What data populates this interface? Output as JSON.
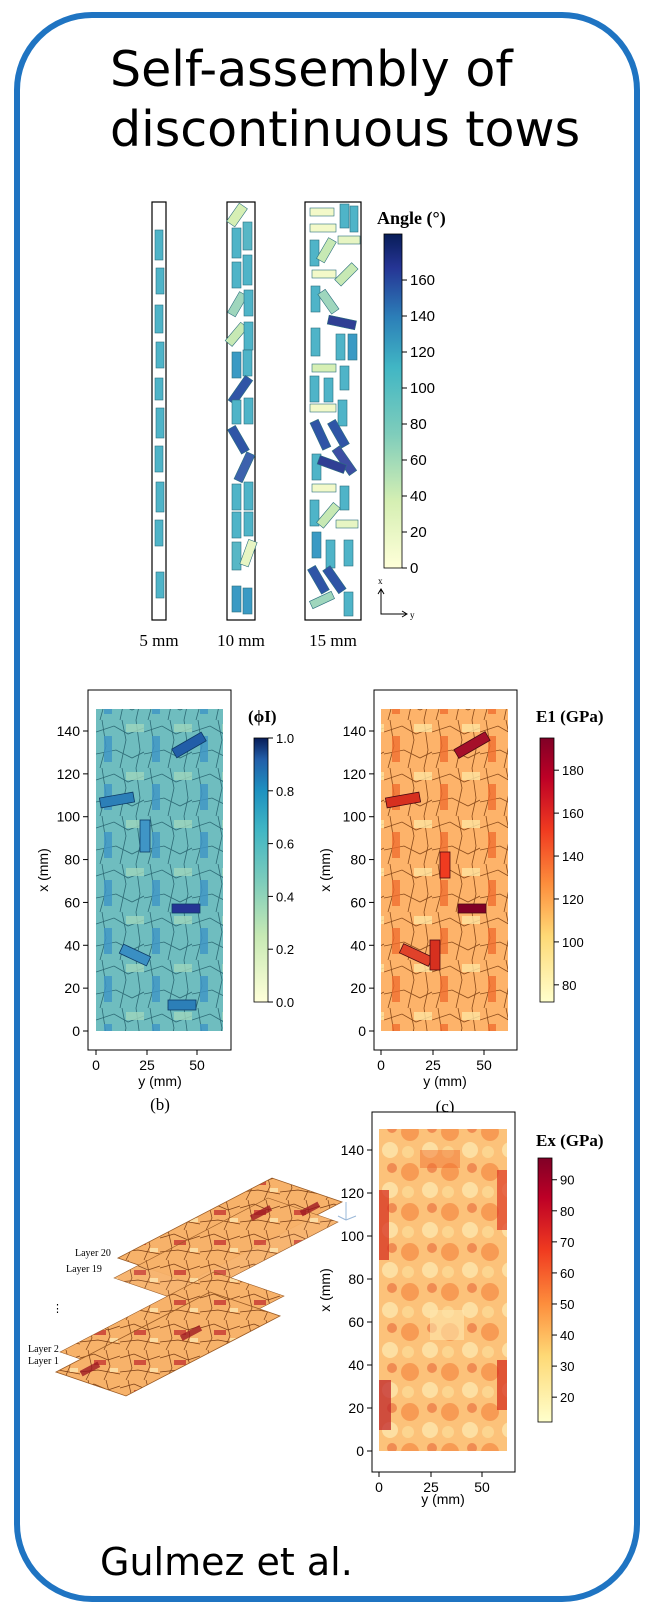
{
  "title": {
    "line1": "Self-assembly of",
    "line2": "discontinuous tows"
  },
  "author": "Gulmez et al.",
  "panel_a": {
    "strip_labels": [
      "5 mm",
      "10 mm",
      "15 mm"
    ],
    "colorbar_title": "Angle (°)",
    "colorbar_ticks": [
      "0",
      "20",
      "40",
      "60",
      "80",
      "100",
      "120",
      "140",
      "160"
    ],
    "axes_x": "x",
    "axes_y": "y"
  },
  "panel_b": {
    "caption": "(b)",
    "xlabel": "y (mm)",
    "ylabel": "x (mm)",
    "xticks": [
      "0",
      "25",
      "50"
    ],
    "yticks": [
      "0",
      "20",
      "40",
      "60",
      "80",
      "100",
      "120",
      "140"
    ],
    "colorbar_title": "(ϕI)",
    "colorbar_ticks": [
      "0.0",
      "0.2",
      "0.4",
      "0.6",
      "0.8",
      "1.0"
    ]
  },
  "panel_c": {
    "caption": "(c)",
    "xlabel": "y (mm)",
    "ylabel": "x (mm)",
    "xticks": [
      "0",
      "25",
      "50"
    ],
    "yticks": [
      "0",
      "20",
      "40",
      "60",
      "80",
      "100",
      "120",
      "140"
    ],
    "colorbar_title": "E1 (GPa)",
    "colorbar_ticks": [
      "80",
      "100",
      "120",
      "140",
      "160",
      "180"
    ]
  },
  "panel_d": {
    "layer_labels": [
      "Layer 20",
      "Layer 19",
      "⋮",
      "Layer 2",
      "Layer 1"
    ]
  },
  "panel_e": {
    "xlabel": "y (mm)",
    "ylabel": "x (mm)",
    "xticks": [
      "0",
      "25",
      "50"
    ],
    "yticks": [
      "0",
      "20",
      "40",
      "60",
      "80",
      "100",
      "120",
      "140"
    ],
    "colorbar_title": "Ex (GPa)",
    "colorbar_ticks": [
      "20",
      "30",
      "40",
      "50",
      "60",
      "70",
      "80",
      "90"
    ]
  },
  "colors": {
    "frame": "#1f74c2"
  }
}
